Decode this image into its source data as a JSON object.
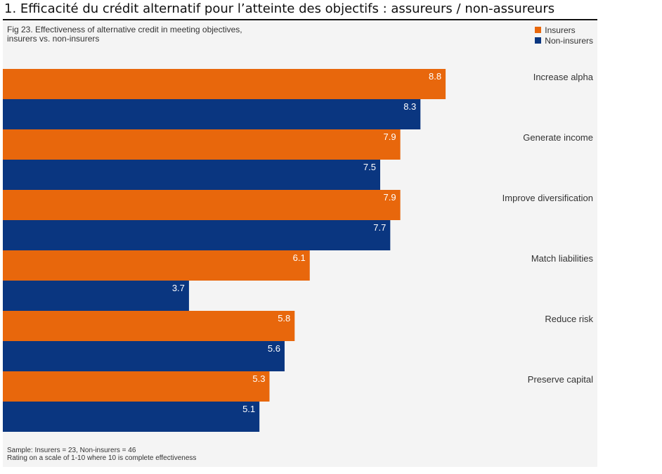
{
  "page_heading": "1. Efficacité du crédit alternatif pour l’atteinte des objectifs : assureurs / non-assureurs",
  "figure": {
    "caption_line1": "Fig 23. Effectiveness of alternative credit in meeting objectives,",
    "caption_line2": "insurers vs. non-insurers",
    "footnote_line1": "Sample: Insurers = 23, Non-insurers = 46",
    "footnote_line2": "Rating on a scale of 1-10 where 10 is complete effectiveness"
  },
  "colors": {
    "insurers": "#e8670c",
    "non_insurers": "#0a3680",
    "background": "#f4f4f4",
    "label_text": "#ffffff"
  },
  "chart_data": {
    "type": "bar",
    "orientation": "horizontal",
    "categories": [
      "Increase alpha",
      "Generate income",
      "Improve diversification",
      "Match liabilities",
      "Reduce risk",
      "Preserve capital"
    ],
    "series": [
      {
        "name": "Insurers",
        "values": [
          8.8,
          7.9,
          7.9,
          6.1,
          5.8,
          5.3
        ]
      },
      {
        "name": "Non-insurers",
        "values": [
          8.3,
          7.5,
          7.7,
          3.7,
          5.6,
          5.1
        ]
      }
    ],
    "xlim": [
      0,
      10
    ],
    "data_labels": true,
    "legend_position": "top-right",
    "grid": false
  }
}
